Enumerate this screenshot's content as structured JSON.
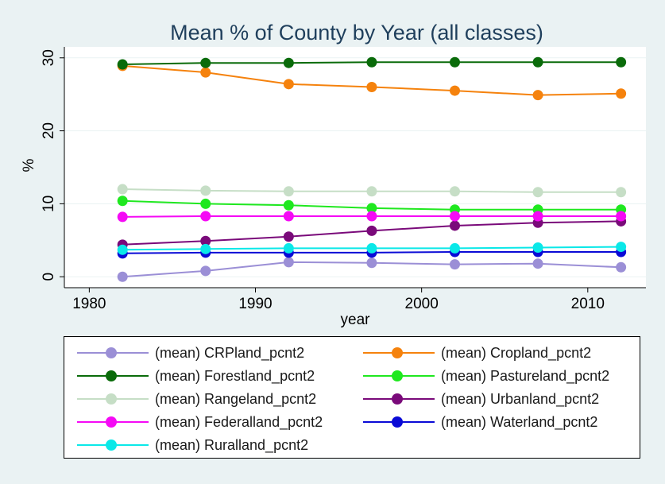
{
  "chart_data": {
    "type": "line",
    "title": "Mean % of County by Year (all classes)",
    "xlabel": "year",
    "ylabel": "%",
    "xlim": [
      1978.5,
      2013.5
    ],
    "ylim": [
      -1.5,
      31.5
    ],
    "xticks": [
      1980,
      1990,
      2000,
      2010
    ],
    "yticks": [
      0,
      10,
      20,
      30
    ],
    "grid": "horizontal",
    "legend_position": "bottom",
    "x": [
      1982,
      1987,
      1992,
      1997,
      2002,
      2007,
      2012
    ],
    "series": [
      {
        "name": "(mean) CRPland_pcnt2",
        "color": "#9b8fd6",
        "values": [
          0.0,
          0.8,
          2.0,
          1.9,
          1.7,
          1.8,
          1.3
        ]
      },
      {
        "name": "(mean) Cropland_pcnt2",
        "color": "#f5820d",
        "values": [
          28.9,
          28.0,
          26.4,
          26.0,
          25.5,
          24.9,
          25.1
        ]
      },
      {
        "name": "(mean) Forestland_pcnt2",
        "color": "#0a6b0a",
        "values": [
          29.1,
          29.3,
          29.3,
          29.4,
          29.4,
          29.4,
          29.4
        ]
      },
      {
        "name": "(mean) Pastureland_pcnt2",
        "color": "#1fe81f",
        "values": [
          10.4,
          10.0,
          9.8,
          9.4,
          9.2,
          9.2,
          9.2
        ]
      },
      {
        "name": "(mean) Rangeland_pcnt2",
        "color": "#c6dec6",
        "values": [
          12.0,
          11.8,
          11.7,
          11.7,
          11.7,
          11.6,
          11.6
        ]
      },
      {
        "name": "(mean) Urbanland_pcnt2",
        "color": "#7a0a7a",
        "values": [
          4.4,
          4.9,
          5.5,
          6.3,
          7.0,
          7.4,
          7.6
        ]
      },
      {
        "name": "(mean) Federalland_pcnt2",
        "color": "#f50af5",
        "values": [
          8.2,
          8.3,
          8.3,
          8.3,
          8.3,
          8.3,
          8.3
        ]
      },
      {
        "name": "(mean) Waterland_pcnt2",
        "color": "#0a0ad6",
        "values": [
          3.2,
          3.3,
          3.3,
          3.3,
          3.4,
          3.4,
          3.4
        ]
      },
      {
        "name": "(mean) Ruralland_pcnt2",
        "color": "#0ae8e8",
        "values": [
          3.7,
          3.8,
          3.9,
          3.9,
          3.9,
          4.0,
          4.1
        ]
      }
    ]
  }
}
